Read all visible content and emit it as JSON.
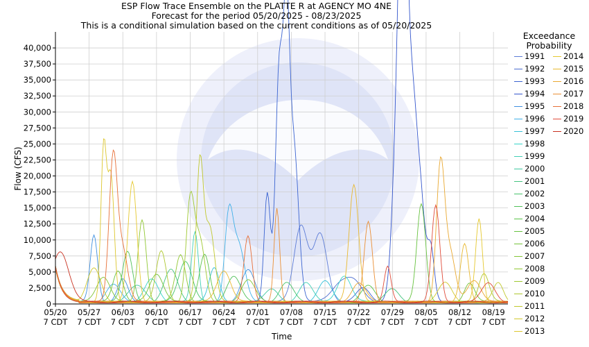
{
  "title_lines": [
    "ESP Flow Trace Ensemble on the PLATTE R at AGENCY MO 4NE",
    "Forecast for the period 05/20/2025 - 08/23/2025",
    "This is a conditional simulation based on the current conditions as of 05/20/2025"
  ],
  "legend_title": [
    "Exceedance",
    "Probability"
  ],
  "chart_data": {
    "type": "line",
    "title": "ESP Flow Trace Ensemble on the PLATTE R at AGENCY MO 4NE",
    "xlabel": "Time",
    "ylabel": "Flow (CFS)",
    "x_start": "05/20",
    "x_end": "08/23",
    "ylim": [
      0,
      42500
    ],
    "y_ticks": [
      0,
      2500,
      5000,
      7500,
      10000,
      12500,
      15000,
      17500,
      20000,
      22500,
      25000,
      27500,
      30000,
      32500,
      35000,
      37500,
      40000
    ],
    "y_tick_labels": [
      "0",
      "2,500",
      "5,000",
      "7,500",
      "10,000",
      "12,500",
      "15,000",
      "17,500",
      "20,000",
      "22,500",
      "25,000",
      "27,500",
      "30,000",
      "32,500",
      "35,000",
      "37,500",
      "40,000"
    ],
    "x_ticks": [
      0,
      7,
      14,
      21,
      28,
      35,
      42,
      49,
      56,
      63,
      70,
      77,
      84,
      91
    ],
    "x_tick_labels": [
      [
        "05/20",
        "7 CDT"
      ],
      [
        "05/27",
        "7 CDT"
      ],
      [
        "06/03",
        "7 CDT"
      ],
      [
        "06/10",
        "7 CDT"
      ],
      [
        "06/17",
        "7 CDT"
      ],
      [
        "06/24",
        "7 CDT"
      ],
      [
        "07/01",
        "7 CDT"
      ],
      [
        "07/08",
        "7 CDT"
      ],
      [
        "07/15",
        "7 CDT"
      ],
      [
        "07/22",
        "7 CDT"
      ],
      [
        "07/29",
        "7 CDT"
      ],
      [
        "08/05",
        "7 CDT"
      ],
      [
        "08/12",
        "7 CDT"
      ],
      [
        "08/19",
        "7 CDT"
      ]
    ],
    "grid": true,
    "legend_position": "right",
    "series": [
      {
        "name": "1991",
        "color": "#5b7bd6",
        "peaks": [
          [
            51,
            12000,
            2.0
          ],
          [
            55,
            10500,
            2.0
          ]
        ]
      },
      {
        "name": "1992",
        "color": "#4b6ccf",
        "peaks": [
          [
            59,
            2600,
            2.5
          ],
          [
            62,
            3000,
            2.5
          ]
        ]
      },
      {
        "name": "1993",
        "color": "#3a63d0",
        "peaks": [
          [
            44,
            16800,
            0.9
          ],
          [
            46.5,
            36500,
            1.1
          ],
          [
            48,
            37500,
            0.9
          ],
          [
            49.5,
            24500,
            1.4
          ],
          [
            64,
            2200,
            2.0
          ]
        ]
      },
      {
        "name": "1994",
        "color": "#3355cc",
        "peaks": [
          [
            71.5,
            39000,
            1.6
          ],
          [
            72.3,
            39000,
            1.0
          ],
          [
            74,
            32000,
            1.6
          ],
          [
            76,
            12000,
            1.3
          ],
          [
            78,
            8000,
            1.0
          ]
        ]
      },
      {
        "name": "1995",
        "color": "#3e8fe0",
        "peaks": [
          [
            8,
            10500,
            1.1
          ],
          [
            14,
            3500,
            1.5
          ],
          [
            40,
            5000,
            2.0
          ]
        ]
      },
      {
        "name": "1996",
        "color": "#3fb0e8",
        "peaks": [
          [
            12,
            2700,
            2.0
          ],
          [
            36,
            12500,
            1.2
          ],
          [
            38,
            9000,
            1.8
          ]
        ]
      },
      {
        "name": "1997",
        "color": "#35c0d8",
        "peaks": [
          [
            33,
            5500,
            1.5
          ],
          [
            56,
            3200,
            2.0
          ]
        ]
      },
      {
        "name": "1998",
        "color": "#36d3c8",
        "peaks": [
          [
            20,
            3500,
            2.0
          ],
          [
            60,
            4200,
            2.0
          ]
        ]
      },
      {
        "name": "1999",
        "color": "#3fcfb5",
        "peaks": [
          [
            29,
            11000,
            1.0
          ],
          [
            52,
            3000,
            2.0
          ]
        ]
      },
      {
        "name": "2000",
        "color": "#40c8a0",
        "peaks": [
          [
            17,
            2500,
            2.5
          ],
          [
            45,
            2000,
            2.0
          ]
        ]
      },
      {
        "name": "2001",
        "color": "#44c47f",
        "peaks": [
          [
            24,
            5000,
            2.0
          ],
          [
            70,
            2000,
            2.0
          ]
        ]
      },
      {
        "name": "2002",
        "color": "#46c46a",
        "peaks": [
          [
            27,
            6500,
            2.0
          ],
          [
            48,
            3000,
            2.0
          ]
        ]
      },
      {
        "name": "2003",
        "color": "#4fc158",
        "peaks": [
          [
            15,
            8000,
            1.5
          ],
          [
            37,
            4000,
            2.0
          ]
        ]
      },
      {
        "name": "2004",
        "color": "#58c247",
        "peaks": [
          [
            31,
            7500,
            1.5
          ],
          [
            65,
            2500,
            2.0
          ]
        ]
      },
      {
        "name": "2005",
        "color": "#66c23e",
        "peaks": [
          [
            13,
            5000,
            1.5
          ],
          [
            76,
            15500,
            1.3
          ]
        ]
      },
      {
        "name": "2006",
        "color": "#74c238",
        "peaks": [
          [
            21,
            4500,
            2.0
          ],
          [
            86,
            3000,
            1.5
          ]
        ]
      },
      {
        "name": "2007",
        "color": "#82c535",
        "peaks": [
          [
            10,
            4000,
            2.0
          ],
          [
            40,
            3500,
            2.0
          ]
        ]
      },
      {
        "name": "2008",
        "color": "#90c732",
        "peaks": [
          [
            18,
            13000,
            1.2
          ],
          [
            26,
            7500,
            1.5
          ]
        ]
      },
      {
        "name": "2009",
        "color": "#9ec830",
        "peaks": [
          [
            28,
            15500,
            1.2
          ],
          [
            30,
            9500,
            1.5
          ]
        ]
      },
      {
        "name": "2010",
        "color": "#aec72e",
        "peaks": [
          [
            22,
            8000,
            1.5
          ],
          [
            89,
            4500,
            1.5
          ]
        ]
      },
      {
        "name": "2011",
        "color": "#c0c82c",
        "peaks": [
          [
            30,
            21000,
            1.0
          ],
          [
            32,
            12000,
            1.5
          ],
          [
            92,
            3000,
            1.5
          ]
        ]
      },
      {
        "name": "2012",
        "color": "#d0c82c",
        "peaks": [
          [
            8,
            5200,
            2.0
          ],
          [
            81,
            3000,
            2.0
          ]
        ]
      },
      {
        "name": "2013",
        "color": "#dcc62c",
        "peaks": [
          [
            10,
            23500,
            0.8
          ],
          [
            11.5,
            20000,
            1.0
          ]
        ]
      },
      {
        "name": "2014",
        "color": "#e5c82e",
        "peaks": [
          [
            16,
            18800,
            1.3
          ],
          [
            88,
            13000,
            1.0
          ]
        ]
      },
      {
        "name": "2015",
        "color": "#e8b82e",
        "peaks": [
          [
            35,
            5000,
            2.0
          ],
          [
            62,
            18500,
            1.4
          ],
          [
            85,
            9000,
            1.2
          ]
        ]
      },
      {
        "name": "2016",
        "color": "#e9a830",
        "peaks": [
          [
            63,
            3000,
            2.0
          ],
          [
            80,
            21500,
            1.2
          ],
          [
            82,
            7500,
            1.5
          ],
          [
            87,
            3500,
            2.0
          ]
        ]
      },
      {
        "name": "2017",
        "color": "#ea8e33",
        "peaks": [
          [
            46,
            14500,
            0.8
          ],
          [
            65,
            12500,
            1.2
          ]
        ]
      },
      {
        "name": "2018",
        "color": "#e76f36",
        "peaks": [
          [
            12,
            22500,
            1.2
          ],
          [
            14,
            8000,
            1.5
          ],
          [
            40,
            10500,
            1.2
          ]
        ]
      },
      {
        "name": "2019",
        "color": "#e04b39",
        "peaks": [
          [
            79,
            15000,
            1.2
          ],
          [
            69,
            5500,
            1.0
          ],
          [
            90,
            3000,
            2.0
          ]
        ]
      },
      {
        "name": "2020",
        "color": "#c8301f",
        "peaks": [
          [
            1,
            8000,
            2.5
          ]
        ]
      }
    ]
  }
}
